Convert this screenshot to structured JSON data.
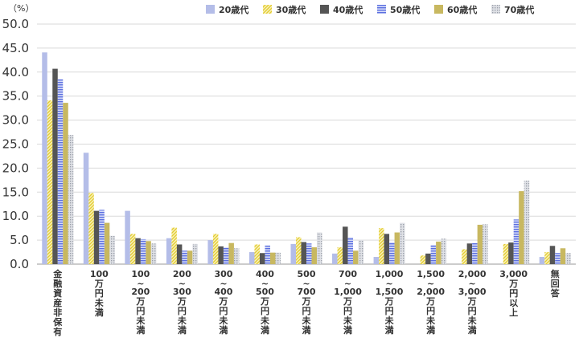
{
  "chart_data": {
    "type": "bar",
    "unit_label": "（%）",
    "ylim": [
      0,
      50
    ],
    "yticks": [
      "0.0",
      "5.0",
      "10.0",
      "15.0",
      "20.0",
      "25.0",
      "30.0",
      "35.0",
      "40.0",
      "45.0",
      "50.0"
    ],
    "grid": true,
    "legend_position": "top-right",
    "categories": [
      [
        "金",
        "融",
        "資",
        "産",
        "非",
        "保",
        "有"
      ],
      [
        "100",
        "万",
        "円",
        "未",
        "満"
      ],
      [
        "100",
        "~",
        "200",
        "万",
        "円",
        "未",
        "満"
      ],
      [
        "200",
        "~",
        "300",
        "万",
        "円",
        "未",
        "満"
      ],
      [
        "300",
        "~",
        "400",
        "万",
        "円",
        "未",
        "満"
      ],
      [
        "400",
        "~",
        "500",
        "万",
        "円",
        "未",
        "満"
      ],
      [
        "500",
        "~",
        "700",
        "万",
        "円",
        "未",
        "満"
      ],
      [
        "700",
        "~",
        "1,000",
        "万",
        "円",
        "未",
        "満"
      ],
      [
        "1,000",
        "~",
        "1,500",
        "万",
        "円",
        "未",
        "満"
      ],
      [
        "1,500",
        "~",
        "2,000",
        "万",
        "円",
        "未",
        "満"
      ],
      [
        "2,000",
        "~",
        "3,000",
        "万",
        "円",
        "未",
        "満"
      ],
      [
        "3,000",
        "万",
        "円",
        "以",
        "上"
      ],
      [
        "無",
        "回",
        "答"
      ]
    ],
    "series": [
      {
        "name": "20歳代",
        "color": "#b4bde8",
        "pattern": "solid",
        "values": [
          44.1,
          23.2,
          11.1,
          5.4,
          5.0,
          2.5,
          4.2,
          2.2,
          1.5,
          0.0,
          0.0,
          0.0,
          1.5
        ]
      },
      {
        "name": "30歳代",
        "color": "#e6d34a",
        "pattern": "diag",
        "values": [
          34.1,
          14.8,
          6.3,
          7.6,
          6.3,
          4.1,
          5.6,
          3.5,
          7.5,
          1.8,
          3.1,
          4.2,
          2.5
        ]
      },
      {
        "name": "40歳代",
        "color": "#555555",
        "pattern": "solid",
        "values": [
          40.7,
          11.1,
          5.4,
          4.1,
          3.7,
          2.3,
          4.6,
          7.8,
          6.3,
          2.2,
          4.3,
          4.5,
          3.8
        ]
      },
      {
        "name": "50歳代",
        "color": "#6f7fe0",
        "pattern": "hlines",
        "values": [
          38.5,
          11.3,
          5.2,
          2.8,
          3.5,
          3.9,
          4.3,
          5.6,
          4.6,
          4.0,
          4.4,
          9.3,
          2.3
        ]
      },
      {
        "name": "60歳代",
        "color": "#c8b860",
        "pattern": "solid",
        "values": [
          33.6,
          8.6,
          4.8,
          2.8,
          4.4,
          2.4,
          3.5,
          2.8,
          6.6,
          4.7,
          8.2,
          15.2,
          3.3
        ]
      },
      {
        "name": "70歳代",
        "color": "#b8bbc4",
        "pattern": "dots",
        "values": [
          26.9,
          5.9,
          4.3,
          4.2,
          3.3,
          2.4,
          6.6,
          5.1,
          8.6,
          5.3,
          8.3,
          17.4,
          2.3
        ]
      }
    ]
  }
}
